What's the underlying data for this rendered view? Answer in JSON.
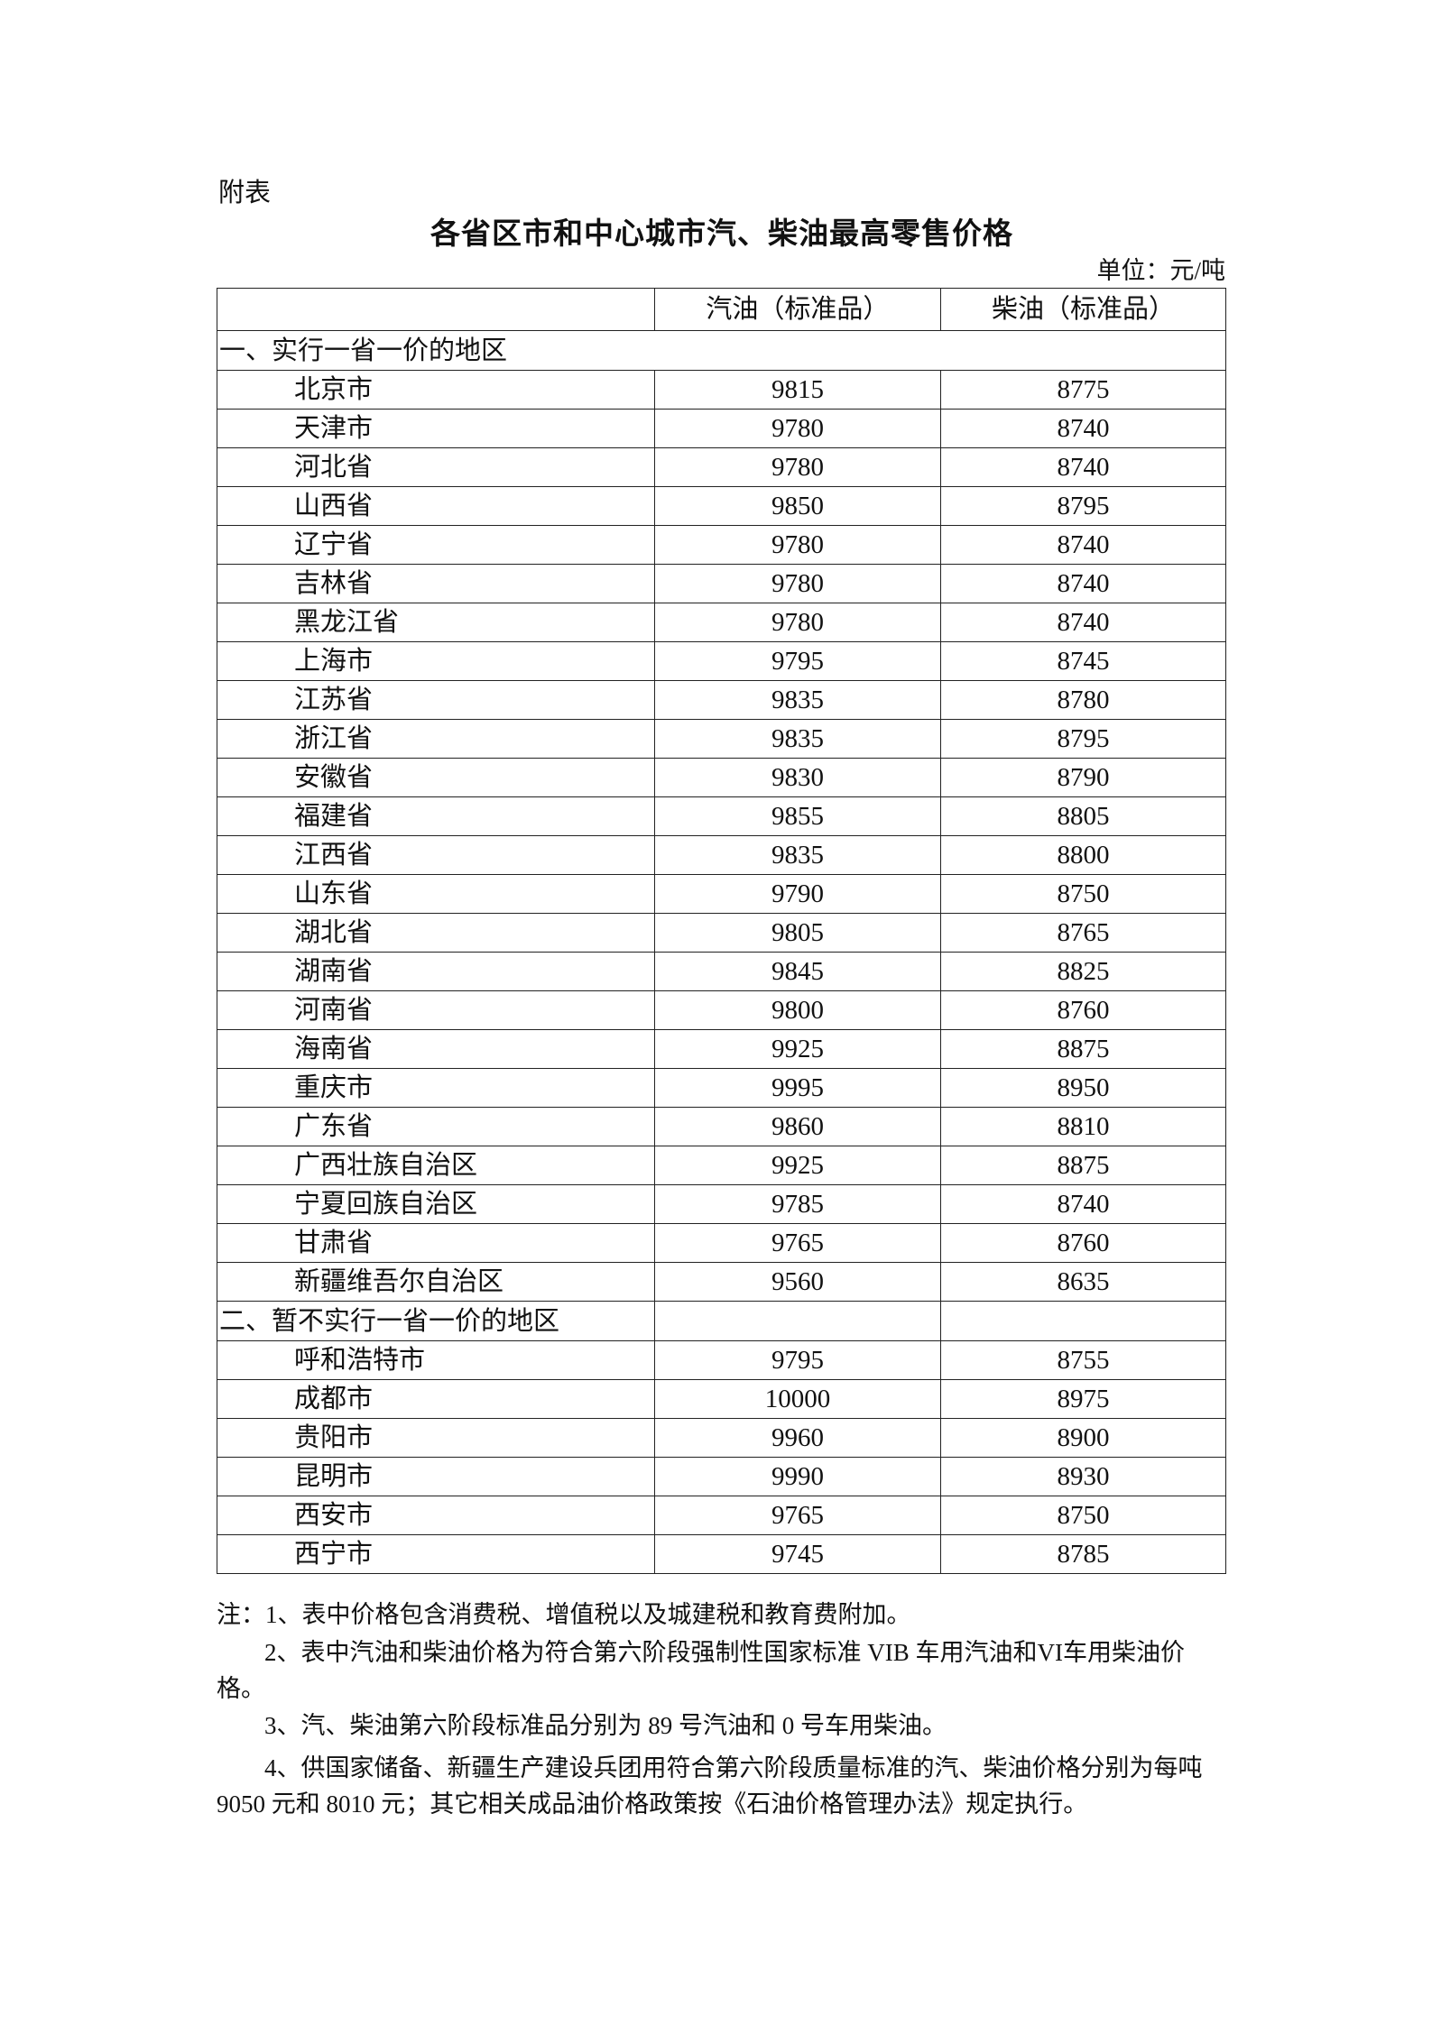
{
  "appendix_label": "附表",
  "title": "各省区市和中心城市汽、柴油最高零售价格",
  "unit": "单位：元/吨",
  "table": {
    "headers": [
      "",
      "汽油（标准品）",
      "柴油（标准品）"
    ],
    "sections": [
      {
        "label": "一、实行一省一价的地区",
        "rows": [
          [
            "北京市",
            "9815",
            "8775"
          ],
          [
            "天津市",
            "9780",
            "8740"
          ],
          [
            "河北省",
            "9780",
            "8740"
          ],
          [
            "山西省",
            "9850",
            "8795"
          ],
          [
            "辽宁省",
            "9780",
            "8740"
          ],
          [
            "吉林省",
            "9780",
            "8740"
          ],
          [
            "黑龙江省",
            "9780",
            "8740"
          ],
          [
            "上海市",
            "9795",
            "8745"
          ],
          [
            "江苏省",
            "9835",
            "8780"
          ],
          [
            "浙江省",
            "9835",
            "8795"
          ],
          [
            "安徽省",
            "9830",
            "8790"
          ],
          [
            "福建省",
            "9855",
            "8805"
          ],
          [
            "江西省",
            "9835",
            "8800"
          ],
          [
            "山东省",
            "9790",
            "8750"
          ],
          [
            "湖北省",
            "9805",
            "8765"
          ],
          [
            "湖南省",
            "9845",
            "8825"
          ],
          [
            "河南省",
            "9800",
            "8760"
          ],
          [
            "海南省",
            "9925",
            "8875"
          ],
          [
            "重庆市",
            "9995",
            "8950"
          ],
          [
            "广东省",
            "9860",
            "8810"
          ],
          [
            "广西壮族自治区",
            "9925",
            "8875"
          ],
          [
            "宁夏回族自治区",
            "9785",
            "8740"
          ],
          [
            "甘肃省",
            "9765",
            "8760"
          ],
          [
            "新疆维吾尔自治区",
            "9560",
            "8635"
          ]
        ]
      },
      {
        "label": "二、暂不实行一省一价的地区",
        "rows": [
          [
            "呼和浩特市",
            "9795",
            "8755"
          ],
          [
            "成都市",
            "10000",
            "8975"
          ],
          [
            "贵阳市",
            "9960",
            "8900"
          ],
          [
            "昆明市",
            "9990",
            "8930"
          ],
          [
            "西安市",
            "9765",
            "8750"
          ],
          [
            "西宁市",
            "9745",
            "8785"
          ]
        ]
      }
    ]
  },
  "notes": [
    "注：1、表中价格包含消费税、增值税以及城建税和教育费附加。",
    "2、表中汽油和柴油价格为符合第六阶段强制性国家标准 VIB 车用汽油和VI车用柴油价格。",
    "3、汽、柴油第六阶段标准品分别为 89 号汽油和 0 号车用柴油。",
    "4、供国家储备、新疆生产建设兵团用符合第六阶段质量标准的汽、柴油价格分别为每吨 9050 元和 8010 元；其它相关成品油价格政策按《石油价格管理办法》规定执行。"
  ]
}
